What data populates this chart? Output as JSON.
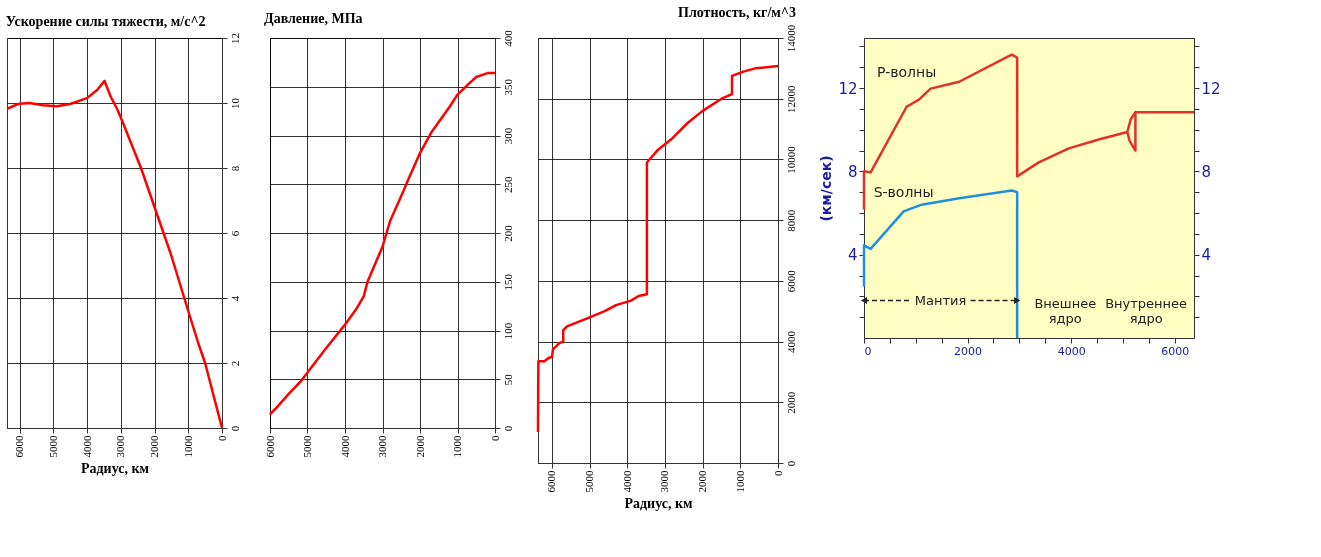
{
  "chart_data": [
    {
      "type": "line",
      "title": "Ускорение силы тяжести, м/с^2",
      "xlabel": "Радиус, км",
      "grid": true,
      "x": [
        6371,
        6200,
        6000,
        5700,
        5300,
        4900,
        4500,
        4000,
        3700,
        3480,
        3300,
        3100,
        2900,
        2400,
        2000,
        1500,
        1000,
        700,
        500,
        300,
        0
      ],
      "series": [
        {
          "color": "#ff0000",
          "values": [
            9.82,
            9.9,
            9.98,
            10.0,
            9.93,
            9.9,
            9.97,
            10.15,
            10.4,
            10.68,
            10.2,
            9.8,
            9.3,
            8.0,
            6.8,
            5.3,
            3.6,
            2.6,
            2.0,
            1.2,
            0
          ]
        }
      ],
      "xlim": [
        6371,
        0
      ],
      "xticks": [
        6000,
        5000,
        4000,
        3000,
        2000,
        1000,
        0
      ],
      "ylim": [
        0,
        12
      ],
      "yticks": [
        0,
        2,
        4,
        6,
        8,
        10,
        12
      ]
    },
    {
      "type": "line",
      "title": "Давление, МПа",
      "grid": true,
      "x": [
        6000,
        5800,
        5500,
        5200,
        5000,
        4700,
        4500,
        4000,
        3700,
        3500,
        3400,
        3200,
        3000,
        2800,
        2500,
        2300,
        2000,
        1800,
        1700,
        1200,
        1000,
        700,
        500,
        200,
        0
      ],
      "series": [
        {
          "color": "#ff0000",
          "values": [
            14,
            22,
            35,
            47,
            57,
            72,
            82,
            106,
            122,
            135,
            150,
            168,
            186,
            212,
            238,
            256,
            282,
            296,
            303,
            330,
            342,
            353,
            360,
            364,
            364
          ]
        }
      ],
      "xlim": [
        6000,
        0
      ],
      "xticks": [
        6000,
        5000,
        4000,
        3000,
        2000,
        1000,
        0
      ],
      "ylim": [
        0,
        400
      ],
      "yticks": [
        0,
        50,
        100,
        150,
        200,
        250,
        300,
        350,
        400
      ]
    },
    {
      "type": "line",
      "title": "Плотность, кг/м^3",
      "xlabel": "Радиус, км",
      "grid": true,
      "x": [
        6371,
        6365,
        6360,
        6200,
        6100,
        6000,
        5971,
        5800,
        5701,
        5701,
        5600,
        5000,
        4600,
        4300,
        3900,
        3700,
        3480,
        3480,
        3200,
        2800,
        2400,
        2000,
        1500,
        1221,
        1221,
        900,
        600,
        0
      ],
      "series": [
        {
          "color": "#ff0000",
          "values": [
            1020,
            2600,
            3350,
            3350,
            3450,
            3500,
            3750,
            3950,
            4000,
            4380,
            4500,
            4800,
            5000,
            5200,
            5350,
            5500,
            5560,
            9900,
            10300,
            10700,
            11200,
            11600,
            12000,
            12150,
            12750,
            12900,
            13000,
            13080
          ]
        }
      ],
      "xlim": [
        6371,
        0
      ],
      "xticks": [
        6000,
        5000,
        4000,
        3000,
        2000,
        1000,
        0
      ],
      "ylim": [
        0,
        14000
      ],
      "yticks": [
        0,
        2000,
        4000,
        6000,
        8000,
        10000,
        12000,
        14000
      ]
    },
    {
      "type": "line",
      "ylabel": "(км/сек)",
      "grid": false,
      "series": [
        {
          "name": "P-волны",
          "color": "#e3302a",
          "x": [
            0,
            0,
            128,
            823,
            1055,
            1287,
            1838,
            2852,
            2957,
            2957,
            3374,
            3954,
            4533,
            5084,
            5150,
            5240,
            5240,
            5130,
            5084,
            5150,
            5240,
            6371
          ],
          "values": [
            6.17,
            8.0,
            7.95,
            11.1,
            11.43,
            11.97,
            12.3,
            13.6,
            13.46,
            7.76,
            8.43,
            9.1,
            9.53,
            9.89,
            10.5,
            10.84,
            9.0,
            9.45,
            9.89,
            10.5,
            10.84,
            10.84
          ]
        },
        {
          "name": "S-волны",
          "color": "#1e8fdc",
          "x": [
            0,
            0,
            128,
            765,
            1113,
            1809,
            2852,
            2957,
            2957
          ],
          "values": [
            2.47,
            4.45,
            4.28,
            6.08,
            6.4,
            6.7,
            7.08,
            7.0,
            0
          ]
        }
      ],
      "annotations": [
        {
          "text": "Мантия",
          "x": 2957,
          "y": 1.8
        },
        "Внешнее\nядро",
        "Внутреннее\nядро"
      ],
      "xlim": [
        0,
        6371
      ],
      "xticks": [
        0,
        {
          "value": 500,
          "label": null
        },
        {
          "value": 1000,
          "label": null
        },
        {
          "value": 1500,
          "label": null
        },
        2000,
        {
          "value": 2500,
          "label": null
        },
        {
          "value": 3000,
          "label": null
        },
        {
          "value": 3500,
          "label": null
        },
        4000,
        {
          "value": 4500,
          "label": null
        },
        {
          "value": 5000,
          "label": null
        },
        {
          "value": 5500,
          "label": null
        },
        6000
      ],
      "ylim": [
        0,
        14.4
      ],
      "yticks": [
        {
          "value": 1,
          "label": null
        },
        {
          "value": 2,
          "label": null
        },
        {
          "value": 3,
          "label": null
        },
        4,
        {
          "value": 5,
          "label": null
        },
        {
          "value": 6,
          "label": null
        },
        {
          "value": 7,
          "label": null
        },
        8,
        {
          "value": 9,
          "label": null
        },
        {
          "value": 10,
          "label": null
        },
        {
          "value": 11,
          "label": null
        },
        12,
        {
          "value": 13,
          "label": null
        },
        {
          "value": 14,
          "label": null
        }
      ],
      "y2lim": [
        0,
        14.4
      ],
      "y2ticks": [
        {
          "value": 1,
          "label": null
        },
        {
          "value": 2,
          "label": null
        },
        {
          "value": 3,
          "label": null
        },
        4,
        {
          "value": 5,
          "label": null
        },
        {
          "value": 6,
          "label": null
        },
        {
          "value": 7,
          "label": null
        },
        8,
        {
          "value": 9,
          "label": null
        },
        {
          "value": 10,
          "label": null
        },
        {
          "value": 11,
          "label": null
        },
        12,
        {
          "value": 13,
          "label": null
        },
        {
          "value": 14,
          "label": null
        }
      ]
    }
  ]
}
